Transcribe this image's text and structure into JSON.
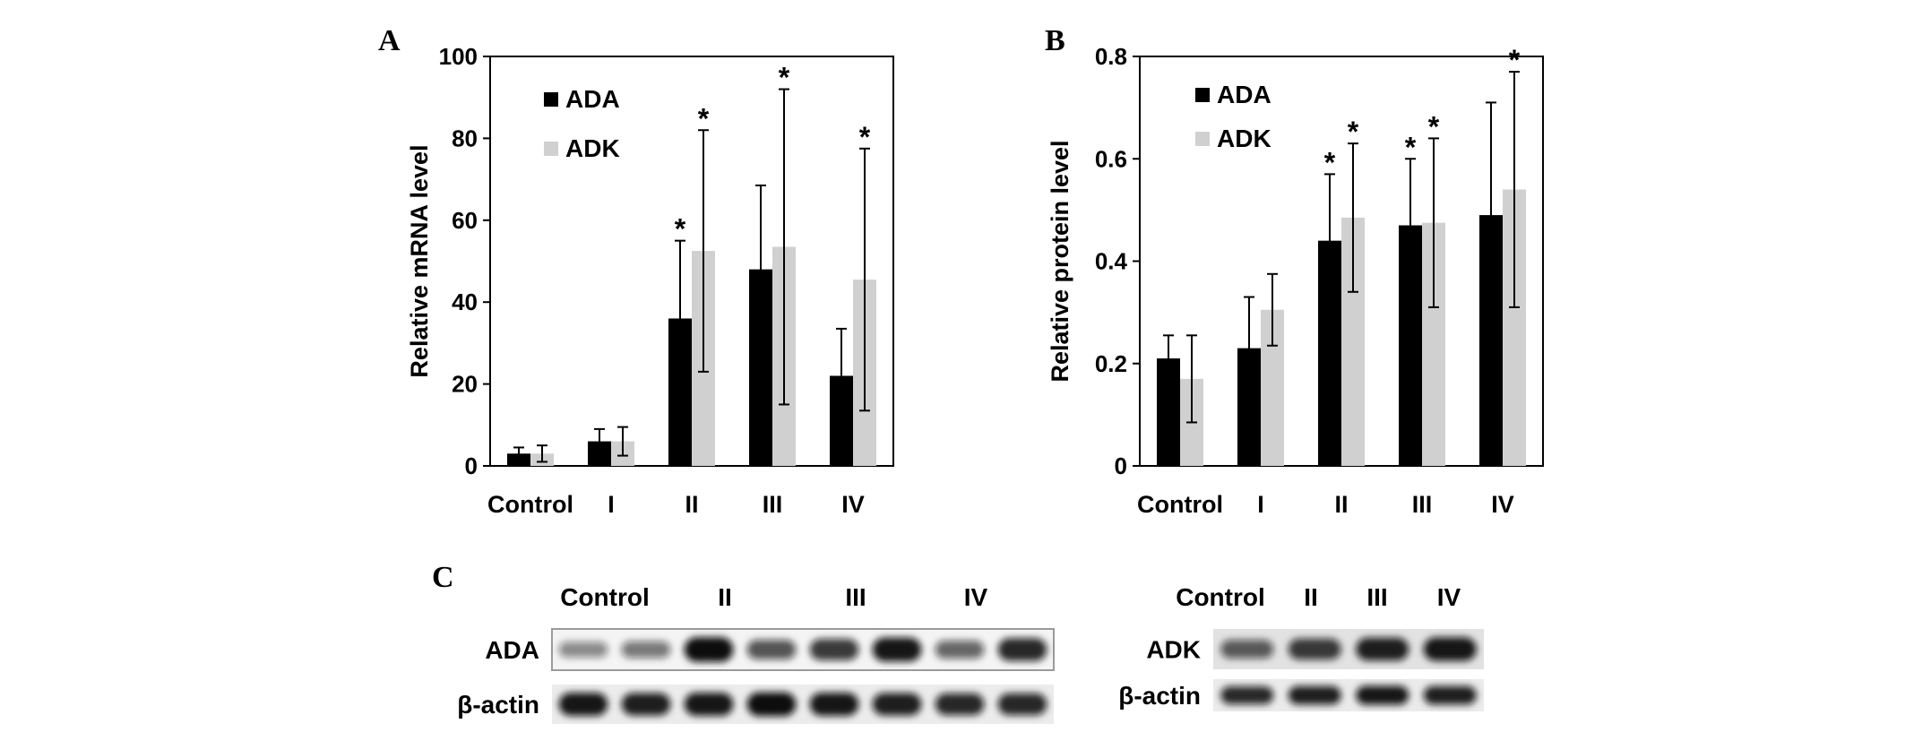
{
  "chart_data": [
    {
      "panel": "A",
      "type": "bar",
      "categories": [
        "Control",
        "I",
        "II",
        "III",
        "IV"
      ],
      "ylabel": "Relative mRNA level",
      "ylim": [
        0,
        100
      ],
      "yticks": [
        "0",
        "20",
        "40",
        "60",
        "80",
        "100"
      ],
      "legend_position": "top-left",
      "series": [
        {
          "name": "ADA",
          "color": "#000000",
          "values": [
            3,
            6,
            36,
            48,
            22
          ],
          "errors": [
            1.5,
            3,
            19,
            20.5,
            11.5
          ],
          "significant": [
            false,
            false,
            true,
            false,
            false
          ]
        },
        {
          "name": "ADK",
          "color": "#d0d0d0",
          "values": [
            3,
            6,
            52.5,
            53.5,
            45.5
          ],
          "errors": [
            2,
            3.5,
            29.5,
            38.5,
            32
          ],
          "significant": [
            false,
            false,
            true,
            true,
            true
          ]
        }
      ],
      "significance_marker": "*"
    },
    {
      "panel": "B",
      "type": "bar",
      "categories": [
        "Control",
        "I",
        "II",
        "III",
        "IV"
      ],
      "ylabel": "Relative protein level",
      "ylim": [
        0,
        0.8
      ],
      "yticks": [
        "0",
        "0.2",
        "0.4",
        "0.6",
        "0.8"
      ],
      "legend_position": "top-left",
      "series": [
        {
          "name": "ADA",
          "color": "#000000",
          "values": [
            0.21,
            0.23,
            0.44,
            0.47,
            0.49
          ],
          "errors": [
            0.045,
            0.1,
            0.13,
            0.13,
            0.22
          ],
          "significant": [
            false,
            false,
            true,
            true,
            false
          ]
        },
        {
          "name": "ADK",
          "color": "#d0d0d0",
          "values": [
            0.17,
            0.305,
            0.485,
            0.475,
            0.54
          ],
          "errors": [
            0.085,
            0.07,
            0.145,
            0.165,
            0.23
          ],
          "significant": [
            false,
            false,
            true,
            true,
            true
          ]
        }
      ],
      "significance_marker": "*"
    }
  ],
  "blots": {
    "panel": "C",
    "left": {
      "lane_labels": [
        "Control",
        "II",
        "III",
        "IV"
      ],
      "rows": [
        {
          "label": "ADA",
          "bands": [
            0.3,
            0.4,
            1.0,
            0.6,
            0.75,
            0.95,
            0.5,
            0.85
          ]
        },
        {
          "label": "β-actin",
          "bands": [
            0.95,
            0.9,
            0.95,
            1.0,
            0.95,
            0.9,
            0.85,
            0.85
          ]
        }
      ]
    },
    "right": {
      "lane_labels": [
        "Control",
        "II",
        "III",
        "IV"
      ],
      "rows": [
        {
          "label": "ADK",
          "bands": [
            0.55,
            0.75,
            0.9,
            0.95
          ]
        },
        {
          "label": "β-actin",
          "bands": [
            0.85,
            0.9,
            0.95,
            0.9
          ]
        }
      ]
    }
  }
}
